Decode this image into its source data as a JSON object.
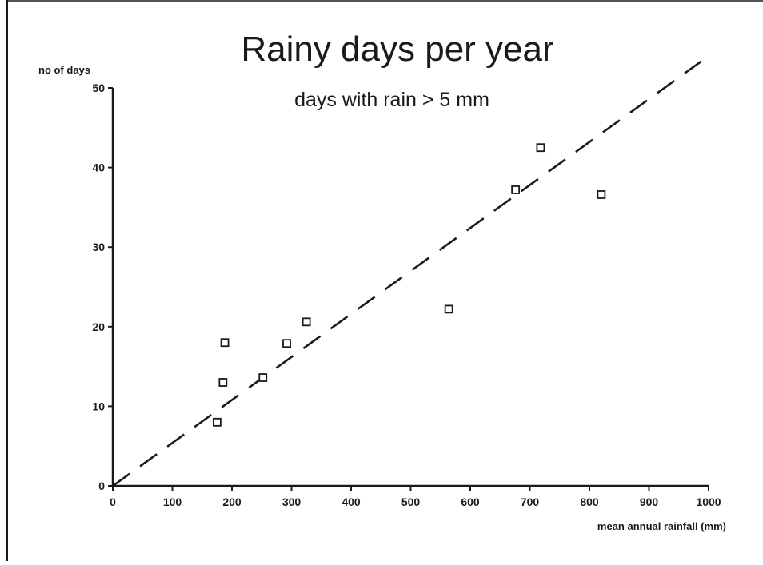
{
  "chart_data": {
    "type": "scatter",
    "title": "Rainy days per year",
    "subtitle": "days with rain > 5 mm",
    "xlabel": "mean annual rainfall (mm)",
    "ylabel": "no of days",
    "xlim": [
      0,
      1000
    ],
    "ylim": [
      0,
      50
    ],
    "x_ticks": [
      0,
      100,
      200,
      300,
      400,
      500,
      600,
      700,
      800,
      900,
      1000
    ],
    "y_ticks": [
      0,
      10,
      20,
      30,
      40,
      50
    ],
    "grid": false,
    "points": [
      {
        "x": 175,
        "y": 8
      },
      {
        "x": 185,
        "y": 13
      },
      {
        "x": 188,
        "y": 18
      },
      {
        "x": 252,
        "y": 13.6
      },
      {
        "x": 292,
        "y": 17.9
      },
      {
        "x": 325,
        "y": 20.6
      },
      {
        "x": 564,
        "y": 22.2
      },
      {
        "x": 676,
        "y": 37.2
      },
      {
        "x": 718,
        "y": 42.5
      },
      {
        "x": 820,
        "y": 36.6
      }
    ],
    "trend_line": {
      "style": "dashed",
      "from": {
        "x": 0,
        "y": 0
      },
      "to": {
        "x": 1000,
        "y": 54
      }
    },
    "colors": {
      "ink": "#1a1a1a",
      "background": "#ffffff"
    }
  }
}
